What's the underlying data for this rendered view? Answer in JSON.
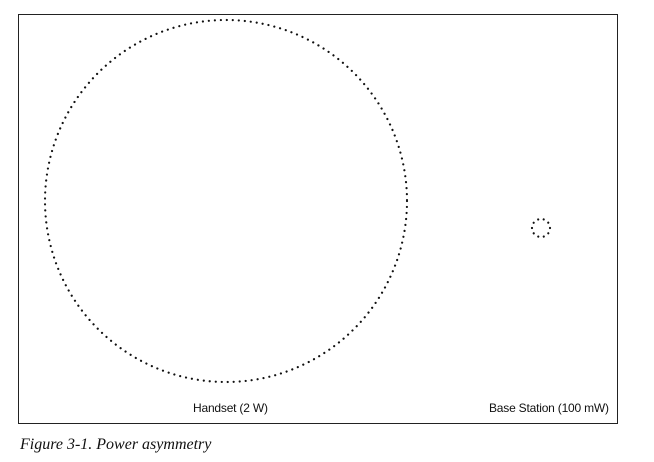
{
  "figure": {
    "handset_label": "Handset (2 W)",
    "base_station_label": "Base Station (100 mW)",
    "caption": "Figure 3-1. Power asymmetry"
  }
}
